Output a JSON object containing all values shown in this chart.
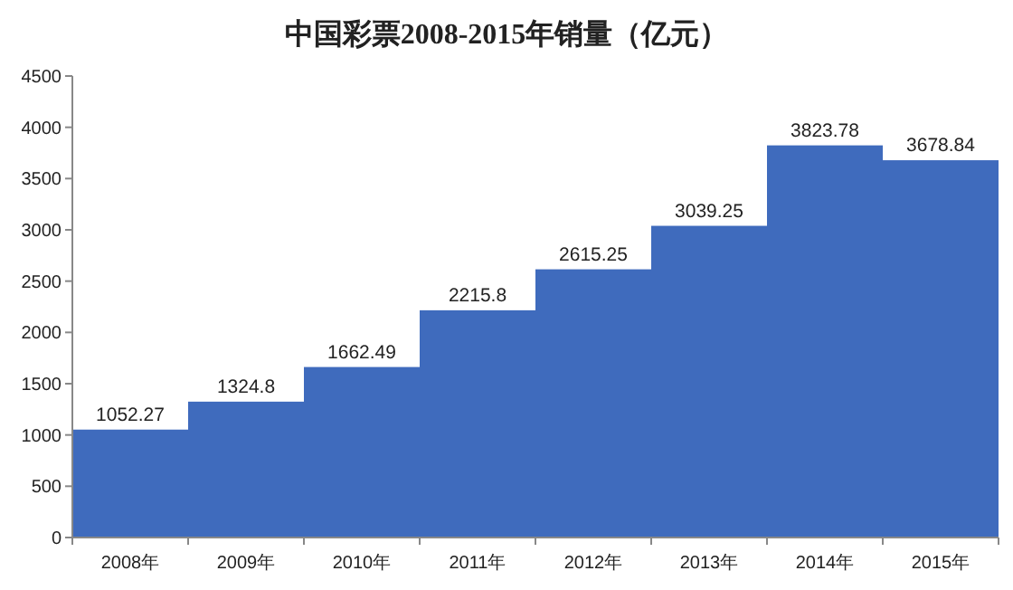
{
  "chart_data": {
    "type": "bar",
    "title": "中国彩票2008-2015年销量（亿元）",
    "categories": [
      "2008年",
      "2009年",
      "2010年",
      "2011年",
      "2012年",
      "2013年",
      "2014年",
      "2015年"
    ],
    "values": [
      1052.27,
      1324.8,
      1662.49,
      2215.8,
      2615.25,
      3039.25,
      3823.78,
      3678.84
    ],
    "color": "#3f6bbd",
    "ylim": [
      0,
      4500
    ],
    "yticks": [
      0,
      500,
      1000,
      1500,
      2000,
      2500,
      3000,
      3500,
      4000,
      4500
    ],
    "data_labels": true,
    "grid": false
  }
}
